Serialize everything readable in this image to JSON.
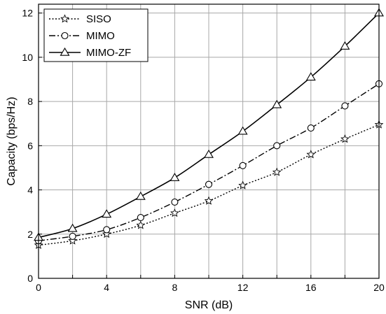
{
  "chart_data": {
    "type": "line",
    "xlabel": "SNR (dB)",
    "ylabel": "Capacity (bps/Hz)",
    "xlim": [
      0,
      20
    ],
    "ylim": [
      0,
      12.4
    ],
    "xticks": [
      0,
      4,
      8,
      12,
      16,
      20
    ],
    "yticks": [
      0,
      2,
      4,
      6,
      8,
      10,
      12
    ],
    "grid": true,
    "legend_position": "top-left",
    "x": [
      0,
      2,
      4,
      6,
      8,
      10,
      12,
      14,
      16,
      18,
      20
    ],
    "series": [
      {
        "name": "SISO",
        "marker": "star",
        "line_style": "dotted",
        "values": [
          1.5,
          1.7,
          2.0,
          2.4,
          2.95,
          3.5,
          4.2,
          4.8,
          5.6,
          6.3,
          6.95
        ]
      },
      {
        "name": "MIMO",
        "marker": "circle",
        "line_style": "dash-dot",
        "values": [
          1.7,
          1.9,
          2.2,
          2.75,
          3.45,
          4.25,
          5.1,
          6.0,
          6.8,
          7.8,
          8.8
        ]
      },
      {
        "name": "MIMO-ZF",
        "marker": "triangle",
        "line_style": "solid",
        "values": [
          1.85,
          2.25,
          2.9,
          3.7,
          4.55,
          5.6,
          6.65,
          7.85,
          9.1,
          10.5,
          12.0
        ]
      }
    ]
  }
}
